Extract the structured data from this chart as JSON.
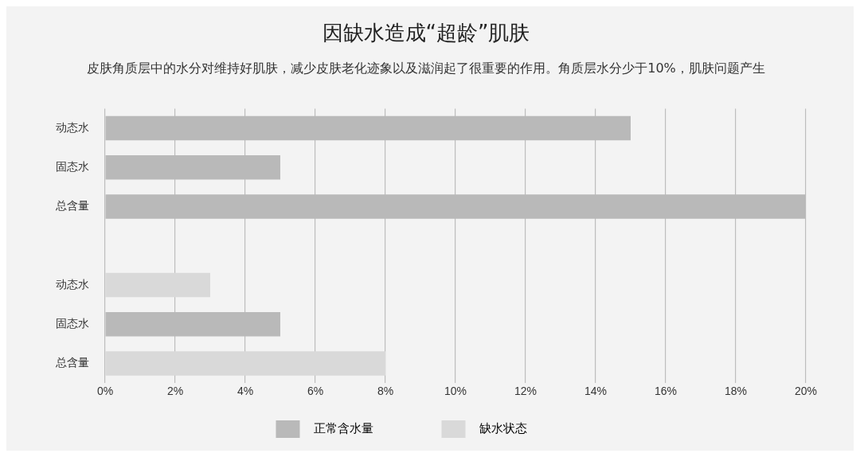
{
  "chart_data": {
    "type": "bar",
    "orientation": "horizontal",
    "title": "因缺水造成“超龄”肌肤",
    "subtitle": "皮肤角质层中的水分对维持好肌肤，减少皮肤老化迹象以及滋润起了很重要的作用。角质层水分少于10%，肌肤问题产生",
    "categories": [
      "动态水",
      "固态水",
      "总含量",
      null,
      "动态水",
      "固态水",
      "总含量"
    ],
    "series": [
      {
        "name": "正常含水量",
        "color": "#b9b9b9",
        "values": [
          15,
          5,
          20,
          null,
          null,
          5,
          null
        ]
      },
      {
        "name": "缺水状态",
        "color": "#d9d9d9",
        "values": [
          null,
          null,
          null,
          null,
          3,
          null,
          8
        ]
      }
    ],
    "xlim": [
      0,
      20
    ],
    "xticks": [
      {
        "value": 0,
        "label": "0%"
      },
      {
        "value": 2,
        "label": "2%"
      },
      {
        "value": 4,
        "label": "4%"
      },
      {
        "value": 6,
        "label": "6%"
      },
      {
        "value": 8,
        "label": "8%"
      },
      {
        "value": 10,
        "label": "10%"
      },
      {
        "value": 12,
        "label": "12%"
      },
      {
        "value": 14,
        "label": "14%"
      },
      {
        "value": 16,
        "label": "16%"
      },
      {
        "value": 18,
        "label": "18%"
      },
      {
        "value": 20,
        "label": "20%"
      }
    ],
    "grid": "x",
    "legend": "bottom"
  }
}
